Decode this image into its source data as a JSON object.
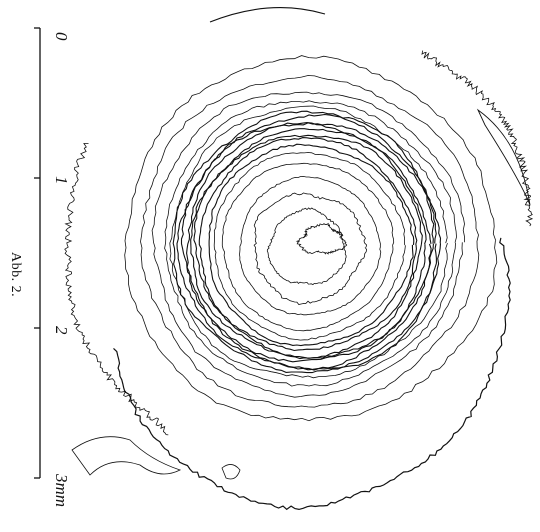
{
  "caption": "Abb. 2.",
  "scale": {
    "labels": [
      "0",
      "1",
      "2",
      "3mm"
    ]
  }
}
